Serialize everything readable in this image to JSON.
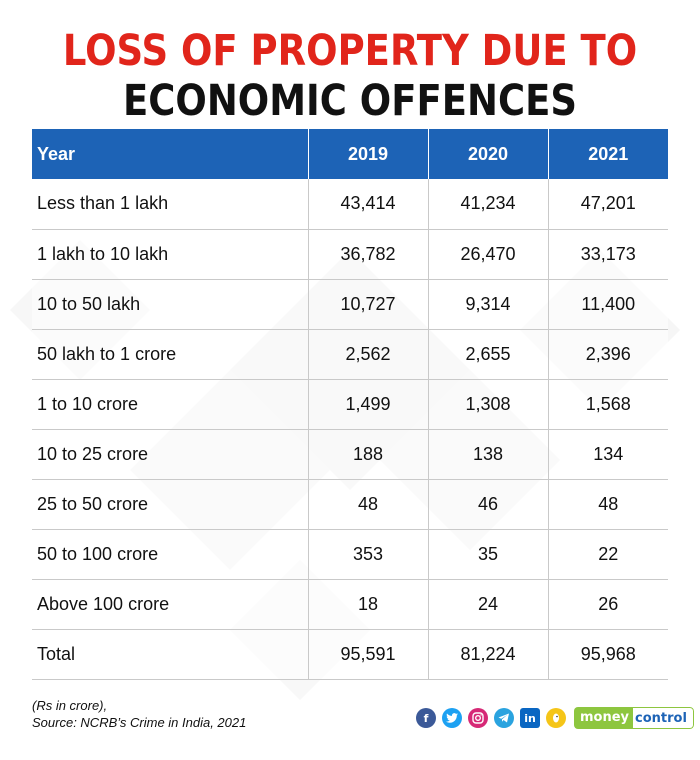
{
  "title": {
    "line1": "LOSS OF PROPERTY DUE TO",
    "line2": "ECONOMIC OFFENCES"
  },
  "chart_data": {
    "type": "table",
    "title": "LOSS OF PROPERTY DUE TO ECONOMIC OFFENCES",
    "header": [
      "Year",
      "2019",
      "2020",
      "2021"
    ],
    "rows": [
      [
        "Less than 1 lakh",
        "43,414",
        "41,234",
        "47,201"
      ],
      [
        "1 lakh to 10 lakh",
        "36,782",
        "26,470",
        "33,173"
      ],
      [
        "10 to 50 lakh",
        "10,727",
        "9,314",
        "11,400"
      ],
      [
        "50 lakh to 1 crore",
        "2,562",
        "2,655",
        "2,396"
      ],
      [
        "1 to 10 crore",
        "1,499",
        "1,308",
        "1,568"
      ],
      [
        "10 to 25 crore",
        "188",
        "138",
        "134"
      ],
      [
        "25 to 50 crore",
        "48",
        "46",
        "48"
      ],
      [
        "50 to 100 crore",
        "353",
        "35",
        "22"
      ],
      [
        "Above 100 crore",
        "18",
        "24",
        "26"
      ],
      [
        "Total",
        "95,591",
        "81,224",
        "95,968"
      ]
    ]
  },
  "footer": {
    "units_note": "(Rs in crore),",
    "source": "Source: NCRB’s Crime in India, 2021"
  },
  "social": {
    "facebook": "f",
    "twitter": "t",
    "linkedin": "in"
  },
  "brand": {
    "part1": "money",
    "part2": "control"
  },
  "colors": {
    "title_red": "#e1251b",
    "header_blue": "#1d63b6",
    "brand_green": "#8dc63f"
  }
}
